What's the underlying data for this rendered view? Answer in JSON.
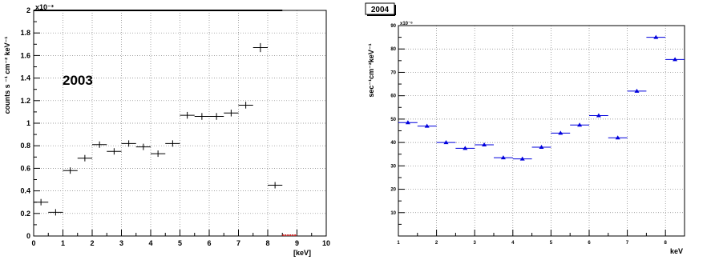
{
  "chart_data": [
    {
      "type": "scatter",
      "style": "horizontal error bars with vertical error ticks",
      "title": "",
      "annotation": "2003",
      "xlabel": "[keV]",
      "ylabel": "counts  s ⁻¹  cm⁻² keV⁻¹",
      "y_scale_label": "x10⁻³",
      "xlim": [
        0,
        10
      ],
      "ylim": [
        0,
        2
      ],
      "x_ticks": [
        "0",
        "1",
        "2",
        "3",
        "4",
        "5",
        "6",
        "7",
        "8",
        "9",
        "10"
      ],
      "y_ticks": [
        "0",
        "0.2",
        "0.4",
        "0.6",
        "0.8",
        "1",
        "1.2",
        "1.4",
        "1.6",
        "1.8",
        "2"
      ],
      "grid": true,
      "colors": {
        "data": "#000000",
        "overflow_marker": "#cc2222",
        "grid": "#808080"
      },
      "series": [
        {
          "points": [
            {
              "x": 0.25,
              "xerr": 0.25,
              "y": 0.3,
              "yerr": 0.01
            },
            {
              "x": 0.75,
              "xerr": 0.25,
              "y": 0.21,
              "yerr": 0.0
            },
            {
              "x": 1.25,
              "xerr": 0.25,
              "y": 0.58,
              "yerr": 0.02
            },
            {
              "x": 1.75,
              "xerr": 0.25,
              "y": 0.69,
              "yerr": 0.02
            },
            {
              "x": 2.25,
              "xerr": 0.25,
              "y": 0.81,
              "yerr": 0.02
            },
            {
              "x": 2.75,
              "xerr": 0.25,
              "y": 0.75,
              "yerr": 0.02
            },
            {
              "x": 3.25,
              "xerr": 0.25,
              "y": 0.82,
              "yerr": 0.02
            },
            {
              "x": 3.75,
              "xerr": 0.25,
              "y": 0.79,
              "yerr": 0.02
            },
            {
              "x": 4.25,
              "xerr": 0.25,
              "y": 0.73,
              "yerr": 0.02
            },
            {
              "x": 4.75,
              "xerr": 0.25,
              "y": 0.82,
              "yerr": 0.02
            },
            {
              "x": 5.25,
              "xerr": 0.25,
              "y": 1.07,
              "yerr": 0.03
            },
            {
              "x": 5.75,
              "xerr": 0.25,
              "y": 1.06,
              "yerr": 0.03
            },
            {
              "x": 6.25,
              "xerr": 0.25,
              "y": 1.06,
              "yerr": 0.03
            },
            {
              "x": 6.75,
              "xerr": 0.25,
              "y": 1.09,
              "yerr": 0.03
            },
            {
              "x": 7.25,
              "xerr": 0.25,
              "y": 1.16,
              "yerr": 0.03
            },
            {
              "x": 7.75,
              "xerr": 0.25,
              "y": 1.67,
              "yerr": 0.04
            },
            {
              "x": 8.25,
              "xerr": 0.25,
              "y": 0.45,
              "yerr": 0.02
            }
          ]
        }
      ],
      "top_line": {
        "x_from": 0,
        "x_to": 8.5,
        "y": 2.0
      },
      "overflow_marker": {
        "x_from": 8.5,
        "x_to": 9.0,
        "y": 0.0
      }
    },
    {
      "type": "scatter",
      "style": "horizontal error bars with triangle markers",
      "title": "2004",
      "xlabel": "keV",
      "ylabel": "sec⁻¹cm⁻²keV⁻¹",
      "y_scale_label": "x10⁻⁶",
      "xlim": [
        1,
        8.5
      ],
      "ylim": [
        0,
        90
      ],
      "x_ticks": [
        "1",
        "2",
        "3",
        "4",
        "5",
        "6",
        "7",
        "8"
      ],
      "y_ticks": [
        "10",
        "20",
        "30",
        "40",
        "50",
        "60",
        "70",
        "80",
        "90"
      ],
      "grid": true,
      "colors": {
        "data": "#0000dd",
        "grid": "#808080"
      },
      "series": [
        {
          "points": [
            {
              "x": 1.25,
              "xerr": 0.25,
              "y": 48.5
            },
            {
              "x": 1.75,
              "xerr": 0.25,
              "y": 47.0
            },
            {
              "x": 2.25,
              "xerr": 0.25,
              "y": 40.0
            },
            {
              "x": 2.75,
              "xerr": 0.25,
              "y": 37.5
            },
            {
              "x": 3.25,
              "xerr": 0.25,
              "y": 39.0
            },
            {
              "x": 3.75,
              "xerr": 0.25,
              "y": 33.5
            },
            {
              "x": 4.25,
              "xerr": 0.25,
              "y": 33.0
            },
            {
              "x": 4.75,
              "xerr": 0.25,
              "y": 38.0
            },
            {
              "x": 5.25,
              "xerr": 0.25,
              "y": 44.0
            },
            {
              "x": 5.75,
              "xerr": 0.25,
              "y": 47.5
            },
            {
              "x": 6.25,
              "xerr": 0.25,
              "y": 51.5
            },
            {
              "x": 6.75,
              "xerr": 0.25,
              "y": 42.0
            },
            {
              "x": 7.25,
              "xerr": 0.25,
              "y": 62.0
            },
            {
              "x": 7.75,
              "xerr": 0.25,
              "y": 85.0
            },
            {
              "x": 8.25,
              "xerr": 0.25,
              "y": 75.5
            }
          ]
        }
      ]
    }
  ]
}
